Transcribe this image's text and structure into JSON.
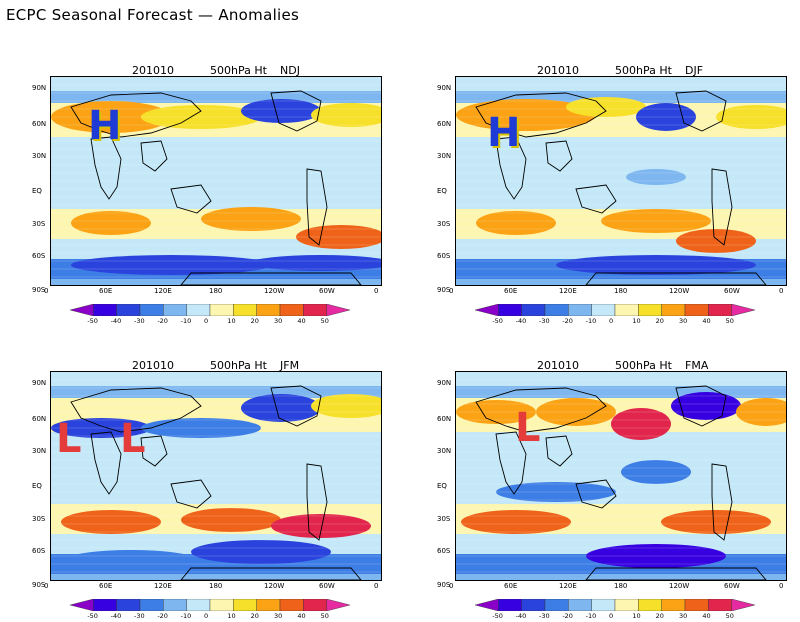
{
  "page": {
    "title": "ECPC Seasonal Forecast — Anomalies"
  },
  "lat_labels": [
    "90N",
    "60N",
    "30N",
    "EQ",
    "30S",
    "60S",
    "90S"
  ],
  "lon_labels": [
    "0",
    "60E",
    "120E",
    "180",
    "120W",
    "60W",
    "0"
  ],
  "colorbar": {
    "ticks": [
      "-50",
      "-40",
      "-30",
      "-20",
      "-10",
      "0",
      "10",
      "20",
      "30",
      "40",
      "50"
    ],
    "colors": [
      "#8a00c8",
      "#3700e0",
      "#2a43dc",
      "#3d7ee6",
      "#7eb7f0",
      "#c4e8f8",
      "#fdf6b0",
      "#f7e02a",
      "#fba314",
      "#ef6219",
      "#e1254c",
      "#e62aa1"
    ]
  },
  "panels": [
    {
      "id": "ndj",
      "date": "201010",
      "variable": "500hPa Ht",
      "season": "NDJ",
      "markers": [
        {
          "letter": "H",
          "type": "H"
        }
      ]
    },
    {
      "id": "djf",
      "date": "201010",
      "variable": "500hPa Ht",
      "season": "DJF",
      "markers": [
        {
          "letter": "H",
          "type": "H"
        }
      ]
    },
    {
      "id": "jfm",
      "date": "201010",
      "variable": "500hPa Ht",
      "season": "JFM",
      "markers": [
        {
          "letter": "L",
          "type": "L"
        },
        {
          "letter": "L",
          "type": "L"
        }
      ]
    },
    {
      "id": "fma",
      "date": "201010",
      "variable": "500hPa Ht",
      "season": "FMA",
      "markers": [
        {
          "letter": "L",
          "type": "L"
        }
      ]
    }
  ]
}
